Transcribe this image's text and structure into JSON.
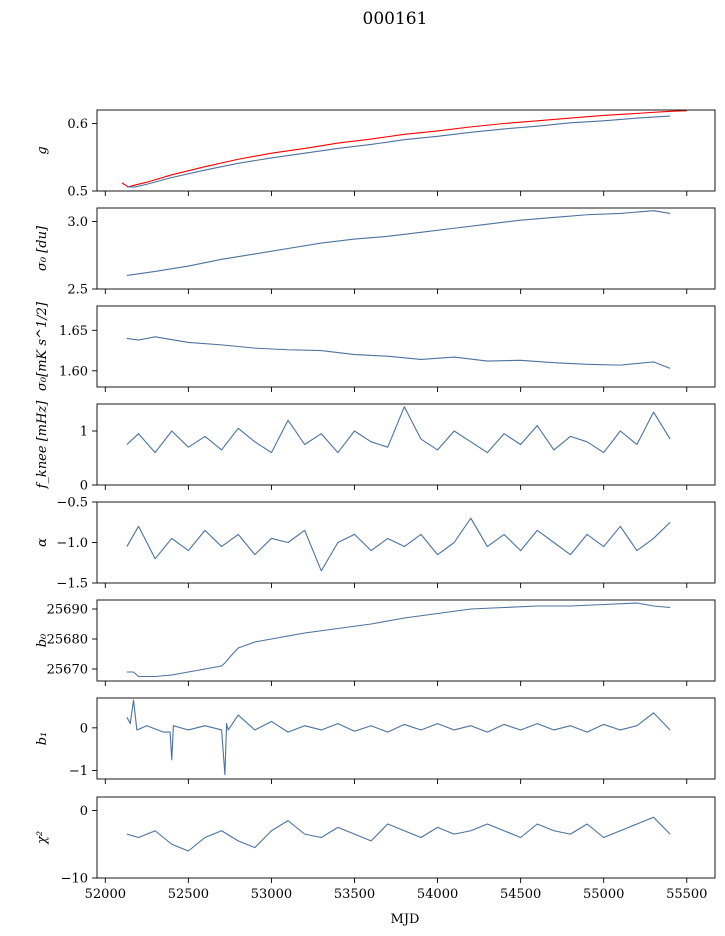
{
  "figure": {
    "title": "000161",
    "xlabel": "MJD"
  },
  "chart_data": [
    {
      "type": "line",
      "ylabel": "g",
      "xlim": [
        51950,
        55670
      ],
      "ylim": [
        0.5,
        0.62
      ],
      "yticks": [
        0.5,
        0.6
      ],
      "ytick_labels": [
        "0.5",
        "0.6"
      ],
      "show_x_ticklabels": false,
      "series": [
        {
          "color": "#ff0000",
          "x": [
            52100,
            52140,
            52180,
            52250,
            52400,
            52600,
            52800,
            53000,
            53200,
            53400,
            53600,
            53800,
            54000,
            54200,
            54400,
            54600,
            54800,
            55000,
            55200,
            55400,
            55500
          ],
          "y": [
            0.512,
            0.506,
            0.509,
            0.513,
            0.524,
            0.536,
            0.547,
            0.556,
            0.563,
            0.571,
            0.577,
            0.584,
            0.589,
            0.595,
            0.6,
            0.604,
            0.608,
            0.612,
            0.615,
            0.618,
            0.619
          ]
        },
        {
          "color": "#4c72a0",
          "x": [
            52130,
            52180,
            52250,
            52400,
            52600,
            52800,
            53000,
            53200,
            53400,
            53600,
            53800,
            54000,
            54200,
            54400,
            54600,
            54800,
            55000,
            55200,
            55400
          ],
          "y": [
            0.506,
            0.506,
            0.51,
            0.52,
            0.531,
            0.541,
            0.549,
            0.556,
            0.563,
            0.569,
            0.576,
            0.581,
            0.587,
            0.592,
            0.596,
            0.601,
            0.604,
            0.608,
            0.611
          ]
        }
      ]
    },
    {
      "type": "line",
      "ylabel": "σ₀ [du]",
      "xlim": [
        51950,
        55670
      ],
      "ylim": [
        2.5,
        3.1
      ],
      "yticks": [
        2.5,
        3.0
      ],
      "ytick_labels": [
        "2.5",
        "3.0"
      ],
      "show_x_ticklabels": false,
      "series": [
        {
          "color": "#4c72a0",
          "x": [
            52130,
            52300,
            52500,
            52700,
            52900,
            53100,
            53300,
            53500,
            53700,
            53900,
            54100,
            54300,
            54500,
            54700,
            54900,
            55100,
            55300,
            55400
          ],
          "y": [
            2.6,
            2.63,
            2.67,
            2.72,
            2.76,
            2.8,
            2.84,
            2.87,
            2.89,
            2.92,
            2.95,
            2.98,
            3.01,
            3.03,
            3.05,
            3.06,
            3.08,
            3.06
          ]
        }
      ]
    },
    {
      "type": "line",
      "ylabel": "σ₀[mK s^1/2]",
      "xlim": [
        51950,
        55670
      ],
      "ylim": [
        1.58,
        1.68
      ],
      "yticks": [
        1.6,
        1.65
      ],
      "ytick_labels": [
        "1.60",
        "1.65"
      ],
      "show_x_ticklabels": false,
      "series": [
        {
          "color": "#4c72a0",
          "x": [
            52130,
            52200,
            52300,
            52500,
            52700,
            52900,
            53100,
            53300,
            53500,
            53700,
            53900,
            54100,
            54300,
            54500,
            54700,
            54900,
            55100,
            55300,
            55400
          ],
          "y": [
            1.64,
            1.638,
            1.642,
            1.635,
            1.632,
            1.628,
            1.626,
            1.625,
            1.62,
            1.618,
            1.614,
            1.617,
            1.612,
            1.613,
            1.61,
            1.608,
            1.607,
            1.611,
            1.603
          ]
        }
      ]
    },
    {
      "type": "line",
      "ylabel": "f_knee [mHz]",
      "xlim": [
        51950,
        55670
      ],
      "ylim": [
        0,
        1.5
      ],
      "yticks": [
        0,
        1
      ],
      "ytick_labels": [
        "0",
        "1"
      ],
      "show_x_ticklabels": false,
      "series": [
        {
          "color": "#4c72a0",
          "x": [
            52130,
            52200,
            52300,
            52400,
            52500,
            52600,
            52700,
            52800,
            52900,
            53000,
            53100,
            53200,
            53300,
            53400,
            53500,
            53600,
            53700,
            53800,
            53900,
            54000,
            54100,
            54200,
            54300,
            54400,
            54500,
            54600,
            54700,
            54800,
            54900,
            55000,
            55100,
            55200,
            55300,
            55400
          ],
          "y": [
            0.75,
            0.95,
            0.6,
            1.0,
            0.7,
            0.9,
            0.65,
            1.05,
            0.8,
            0.6,
            1.2,
            0.75,
            0.95,
            0.6,
            1.0,
            0.8,
            0.7,
            1.45,
            0.85,
            0.65,
            1.0,
            0.8,
            0.6,
            0.95,
            0.75,
            1.1,
            0.65,
            0.9,
            0.8,
            0.6,
            1.0,
            0.75,
            1.35,
            0.85
          ]
        }
      ]
    },
    {
      "type": "line",
      "ylabel": "α",
      "xlim": [
        51950,
        55670
      ],
      "ylim": [
        -1.5,
        -0.5
      ],
      "yticks": [
        -1.5,
        -1.0,
        -0.5
      ],
      "ytick_labels": [
        "−1.5",
        "−1.0",
        "−0.5"
      ],
      "show_x_ticklabels": false,
      "series": [
        {
          "color": "#4c72a0",
          "x": [
            52130,
            52200,
            52300,
            52400,
            52500,
            52600,
            52700,
            52800,
            52900,
            53000,
            53100,
            53200,
            53300,
            53400,
            53500,
            53600,
            53700,
            53800,
            53900,
            54000,
            54100,
            54200,
            54300,
            54400,
            54500,
            54600,
            54700,
            54800,
            54900,
            55000,
            55100,
            55200,
            55300,
            55400
          ],
          "y": [
            -1.05,
            -0.8,
            -1.2,
            -0.95,
            -1.1,
            -0.85,
            -1.05,
            -0.9,
            -1.15,
            -0.95,
            -1.0,
            -0.85,
            -1.35,
            -1.0,
            -0.9,
            -1.1,
            -0.95,
            -1.05,
            -0.9,
            -1.15,
            -1.0,
            -0.7,
            -1.05,
            -0.9,
            -1.1,
            -0.85,
            -1.0,
            -1.15,
            -0.9,
            -1.05,
            -0.8,
            -1.1,
            -0.95,
            -0.75
          ]
        }
      ]
    },
    {
      "type": "line",
      "ylabel": "b₀",
      "xlim": [
        51950,
        55670
      ],
      "ylim": [
        25666,
        25693
      ],
      "yticks": [
        25670,
        25680,
        25690
      ],
      "ytick_labels": [
        "25670",
        "25680",
        "25690"
      ],
      "show_x_ticklabels": false,
      "series": [
        {
          "color": "#4c72a0",
          "x": [
            52130,
            52170,
            52200,
            52300,
            52400,
            52500,
            52600,
            52700,
            52720,
            52750,
            52800,
            52900,
            53000,
            53200,
            53400,
            53600,
            53800,
            54000,
            54200,
            54400,
            54600,
            54800,
            55000,
            55200,
            55300,
            55400
          ],
          "y": [
            25669,
            25669,
            25667.5,
            25667.5,
            25668,
            25669,
            25670,
            25671,
            25672,
            25674,
            25677,
            25679,
            25680,
            25682,
            25683.5,
            25685,
            25687,
            25688.5,
            25690,
            25690.5,
            25691,
            25691,
            25691.5,
            25692,
            25691,
            25690.5
          ]
        }
      ]
    },
    {
      "type": "line",
      "ylabel": "b₁",
      "xlim": [
        51950,
        55670
      ],
      "ylim": [
        -1.2,
        0.7
      ],
      "yticks": [
        -1,
        0
      ],
      "ytick_labels": [
        "−1",
        "0"
      ],
      "show_x_ticklabels": false,
      "series": [
        {
          "color": "#4c72a0",
          "x": [
            52130,
            52150,
            52170,
            52190,
            52250,
            52350,
            52390,
            52400,
            52410,
            52500,
            52600,
            52700,
            52720,
            52730,
            52740,
            52800,
            52900,
            53000,
            53100,
            53200,
            53300,
            53400,
            53500,
            53600,
            53700,
            53800,
            53900,
            54000,
            54100,
            54200,
            54300,
            54400,
            54500,
            54600,
            54700,
            54800,
            54900,
            55000,
            55100,
            55200,
            55300,
            55400
          ],
          "y": [
            0.25,
            0.1,
            0.65,
            -0.05,
            0.05,
            -0.1,
            -0.1,
            -0.75,
            0.05,
            -0.05,
            0.05,
            -0.05,
            -1.1,
            0.1,
            -0.05,
            0.3,
            -0.05,
            0.15,
            -0.1,
            0.05,
            -0.05,
            0.1,
            -0.08,
            0.05,
            -0.1,
            0.08,
            -0.05,
            0.1,
            -0.05,
            0.05,
            -0.1,
            0.08,
            -0.05,
            0.1,
            -0.05,
            0.05,
            -0.1,
            0.08,
            -0.05,
            0.05,
            0.35,
            -0.05
          ]
        }
      ]
    },
    {
      "type": "line",
      "ylabel": "χ²",
      "xlim": [
        51950,
        55670
      ],
      "ylim": [
        -10,
        2
      ],
      "yticks": [
        -10,
        0
      ],
      "ytick_labels": [
        "−10",
        "0"
      ],
      "show_x_ticklabels": true,
      "xticks": [
        52000,
        52500,
        53000,
        53500,
        54000,
        54500,
        55000,
        55500
      ],
      "xtick_labels": [
        "52000",
        "52500",
        "53000",
        "53500",
        "54000",
        "54500",
        "55000",
        "55500"
      ],
      "series": [
        {
          "color": "#4c72a0",
          "x": [
            52130,
            52200,
            52300,
            52400,
            52500,
            52600,
            52700,
            52800,
            52900,
            53000,
            53100,
            53200,
            53300,
            53400,
            53500,
            53600,
            53700,
            53800,
            53900,
            54000,
            54100,
            54200,
            54300,
            54400,
            54500,
            54600,
            54700,
            54800,
            54900,
            55000,
            55100,
            55200,
            55300,
            55400
          ],
          "y": [
            -3.5,
            -4.0,
            -3.0,
            -5.0,
            -6.0,
            -4.0,
            -3.0,
            -4.5,
            -5.5,
            -3.0,
            -1.5,
            -3.5,
            -4.0,
            -2.5,
            -3.5,
            -4.5,
            -2.0,
            -3.0,
            -4.0,
            -2.5,
            -3.5,
            -3.0,
            -2.0,
            -3.0,
            -4.0,
            -2.0,
            -3.0,
            -3.5,
            -2.0,
            -4.0,
            -3.0,
            -2.0,
            -1.0,
            -3.5
          ]
        }
      ]
    }
  ]
}
